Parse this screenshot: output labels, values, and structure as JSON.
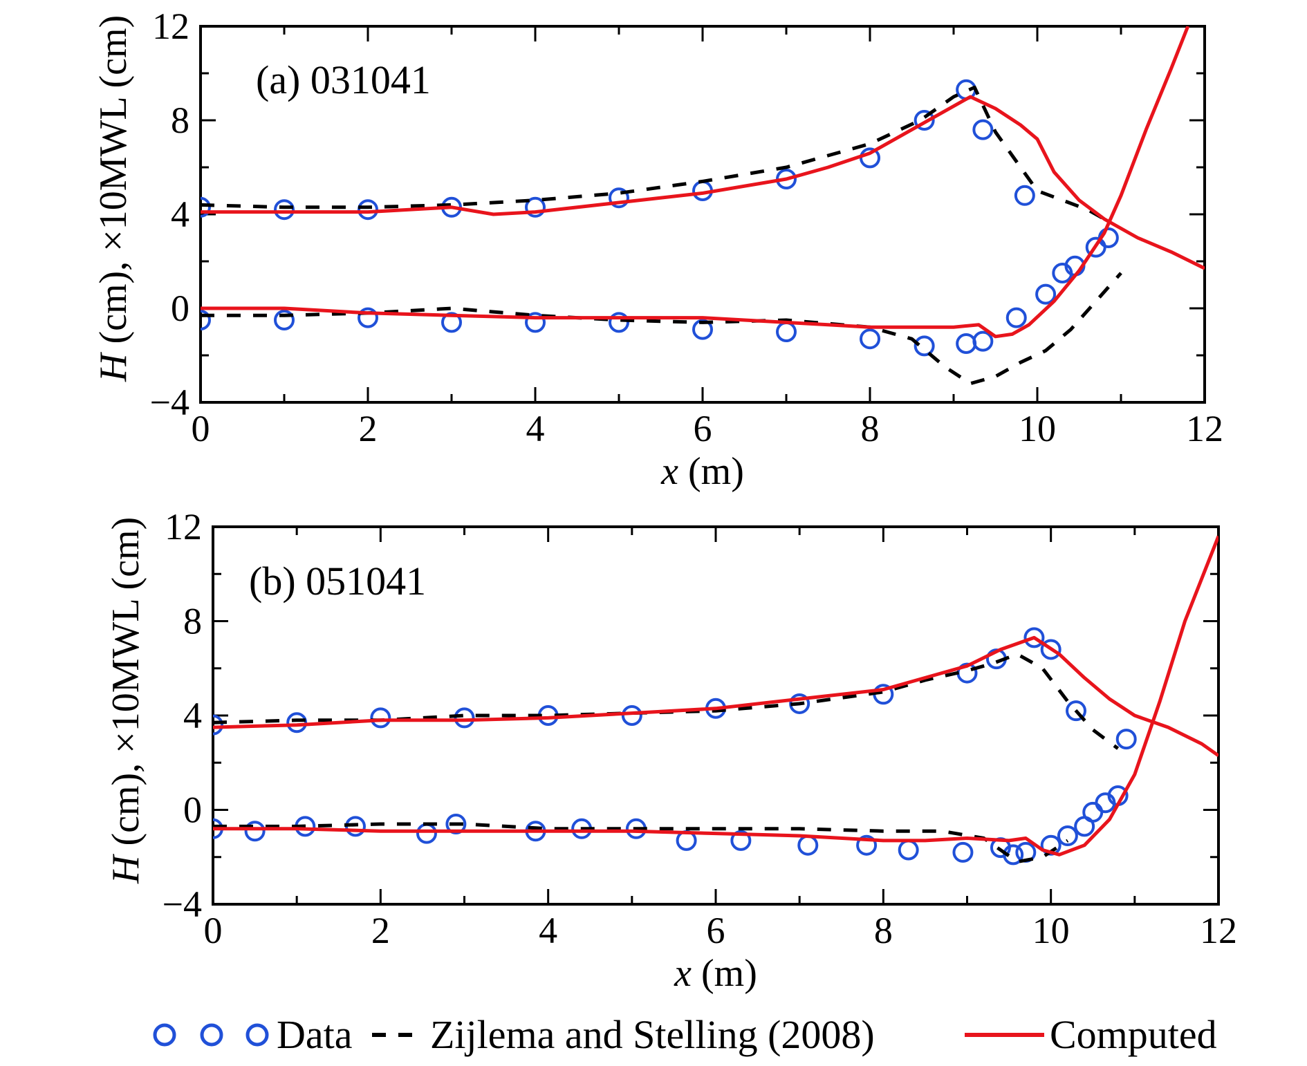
{
  "chart_data": [
    {
      "type": "line",
      "panel_title": "(a) 031041",
      "xlabel_var": "x",
      "xlabel_unit": "(m)",
      "ylabel_var": "H",
      "ylabel_rest": "(cm), ×10MWL (cm)",
      "xlim": [
        0,
        12
      ],
      "ylim": [
        -4,
        12
      ],
      "xticks": [
        0,
        2,
        4,
        6,
        8,
        10,
        12
      ],
      "yticks": [
        -4,
        0,
        4,
        8,
        12
      ],
      "ytick_labels": [
        "−4",
        "0",
        "4",
        "8",
        "12"
      ],
      "series": [
        {
          "name": "Data",
          "style": "circle",
          "color": "#2050d8",
          "groups": [
            {
              "x": [
                0,
                1,
                2,
                3,
                4,
                5,
                6,
                7,
                8,
                8.65,
                9.15,
                9.35,
                9.85
              ],
              "y": [
                4.3,
                4.2,
                4.2,
                4.3,
                4.3,
                4.7,
                5.0,
                5.5,
                6.4,
                8.0,
                9.3,
                7.6,
                4.8
              ]
            },
            {
              "x": [
                0,
                1,
                2,
                3,
                4,
                5,
                6,
                7,
                8,
                8.65,
                9.15,
                9.35,
                9.75,
                10.1,
                10.3,
                10.45,
                10.7,
                10.85
              ],
              "y": [
                -0.5,
                -0.5,
                -0.4,
                -0.6,
                -0.6,
                -0.6,
                -0.9,
                -1.0,
                -1.3,
                -1.6,
                -1.5,
                -1.4,
                -0.4,
                0.6,
                1.5,
                1.8,
                2.6,
                3.0
              ]
            }
          ]
        },
        {
          "name": "Zijlema and Stelling (2008)",
          "style": "dashed",
          "color": "#000000",
          "groups": [
            {
              "x": [
                0,
                1,
                2,
                3,
                4,
                5,
                6,
                7,
                8,
                8.6,
                9.0,
                9.25,
                9.5,
                9.8,
                10.0,
                10.3,
                10.6,
                10.8
              ],
              "y": [
                4.4,
                4.3,
                4.3,
                4.4,
                4.6,
                4.9,
                5.4,
                6.0,
                7.0,
                8.0,
                9.0,
                9.4,
                7.5,
                6.0,
                5.0,
                4.6,
                4.2,
                3.8
              ]
            },
            {
              "x": [
                0,
                1,
                2,
                3,
                4,
                5,
                6,
                7,
                8,
                8.5,
                8.9,
                9.2,
                9.5,
                9.8,
                10.1,
                10.4,
                10.7,
                11.0
              ],
              "y": [
                -0.3,
                -0.3,
                -0.2,
                0.0,
                -0.3,
                -0.5,
                -0.6,
                -0.5,
                -0.8,
                -1.3,
                -2.5,
                -3.2,
                -2.9,
                -2.3,
                -1.8,
                -0.9,
                0.3,
                1.5
              ]
            }
          ]
        },
        {
          "name": "Computed",
          "style": "solid",
          "color": "#e8141c",
          "groups": [
            {
              "x": [
                0,
                1,
                2,
                3,
                3.5,
                4,
                5,
                6,
                7,
                7.5,
                8,
                8.5,
                9.0,
                9.2,
                9.5,
                9.8,
                10.0,
                10.2,
                10.5,
                10.8,
                11.2,
                11.6,
                12.0
              ],
              "y": [
                4.1,
                4.1,
                4.1,
                4.3,
                4.0,
                4.1,
                4.5,
                4.9,
                5.5,
                6.0,
                6.6,
                7.6,
                8.6,
                9.0,
                8.5,
                7.8,
                7.2,
                5.8,
                4.6,
                3.8,
                3.0,
                2.4,
                1.7
              ]
            },
            {
              "x": [
                0,
                1,
                2,
                3,
                4,
                5,
                6,
                7,
                7.5,
                8,
                8.5,
                9.0,
                9.3,
                9.5,
                9.7,
                9.9,
                10.2,
                10.5,
                10.8,
                11.0,
                11.3,
                11.6,
                11.8
              ],
              "y": [
                0.0,
                0.0,
                -0.2,
                -0.3,
                -0.4,
                -0.4,
                -0.4,
                -0.6,
                -0.7,
                -0.8,
                -0.8,
                -0.8,
                -0.7,
                -1.2,
                -1.1,
                -0.7,
                0.3,
                1.6,
                3.2,
                4.8,
                7.6,
                10.2,
                12.0
              ]
            }
          ]
        }
      ]
    },
    {
      "type": "line",
      "panel_title": "(b) 051041",
      "xlabel_var": "x",
      "xlabel_unit": "(m)",
      "ylabel_var": "H",
      "ylabel_rest": "(cm), ×10MWL (cm)",
      "xlim": [
        0,
        12
      ],
      "ylim": [
        -4,
        12
      ],
      "xticks": [
        0,
        2,
        4,
        6,
        8,
        10,
        12
      ],
      "yticks": [
        -4,
        0,
        4,
        8,
        12
      ],
      "ytick_labels": [
        "−4",
        "0",
        "4",
        "8",
        "12"
      ],
      "series": [
        {
          "name": "Data",
          "style": "circle",
          "color": "#2050d8",
          "groups": [
            {
              "x": [
                0,
                1,
                2,
                3,
                4,
                5,
                6,
                7,
                8,
                9,
                9.35,
                9.8,
                10.0,
                10.3,
                10.9
              ],
              "y": [
                3.6,
                3.7,
                3.9,
                3.9,
                4.0,
                4.0,
                4.3,
                4.5,
                4.9,
                5.8,
                6.4,
                7.3,
                6.8,
                4.2,
                3.0
              ]
            },
            {
              "x": [
                0,
                0.5,
                1.1,
                1.7,
                2.55,
                2.9,
                3.85,
                4.4,
                5.05,
                5.65,
                6.3,
                7.1,
                7.8,
                8.3,
                8.95,
                9.4,
                9.55,
                9.7,
                10.0,
                10.2,
                10.4,
                10.5,
                10.65,
                10.8
              ],
              "y": [
                -0.8,
                -0.9,
                -0.7,
                -0.7,
                -1.0,
                -0.6,
                -0.9,
                -0.8,
                -0.8,
                -1.3,
                -1.3,
                -1.5,
                -1.5,
                -1.7,
                -1.8,
                -1.6,
                -1.9,
                -1.8,
                -1.5,
                -1.1,
                -0.7,
                -0.1,
                0.3,
                0.6
              ]
            }
          ]
        },
        {
          "name": "Zijlema and Stelling (2008)",
          "style": "dashed",
          "color": "#000000",
          "groups": [
            {
              "x": [
                0,
                1,
                2,
                3,
                4,
                5,
                6,
                7,
                8,
                8.5,
                9.0,
                9.3,
                9.6,
                9.9,
                10.2,
                10.5,
                10.8
              ],
              "y": [
                3.7,
                3.8,
                3.8,
                4.0,
                4.0,
                4.1,
                4.2,
                4.5,
                5.0,
                5.5,
                5.9,
                6.2,
                6.6,
                6.0,
                4.6,
                3.4,
                2.6
              ]
            },
            {
              "x": [
                0,
                1,
                2,
                3,
                4,
                5,
                6,
                7,
                8,
                8.7,
                9.2,
                9.6,
                9.9,
                10.2
              ],
              "y": [
                -0.7,
                -0.7,
                -0.6,
                -0.6,
                -0.8,
                -0.8,
                -0.8,
                -0.8,
                -0.9,
                -0.9,
                -1.2,
                -2.2,
                -2.0,
                -1.3
              ]
            }
          ]
        },
        {
          "name": "Computed",
          "style": "solid",
          "color": "#e8141c",
          "groups": [
            {
              "x": [
                0,
                1,
                1.5,
                2,
                3,
                4,
                5,
                6,
                7,
                8,
                8.5,
                9.0,
                9.4,
                9.8,
                10.1,
                10.4,
                10.7,
                11.0,
                11.4,
                11.8,
                12.0
              ],
              "y": [
                3.5,
                3.6,
                3.7,
                3.8,
                3.8,
                3.9,
                4.1,
                4.3,
                4.7,
                5.1,
                5.6,
                6.1,
                6.8,
                7.3,
                6.6,
                5.6,
                4.7,
                4.0,
                3.5,
                2.8,
                2.3
              ]
            },
            {
              "x": [
                0,
                1,
                2,
                3,
                4,
                5,
                6,
                7,
                8,
                8.5,
                9.0,
                9.5,
                9.7,
                9.9,
                10.1,
                10.4,
                10.7,
                11.0,
                11.3,
                11.6,
                12.0
              ],
              "y": [
                -0.8,
                -0.8,
                -0.9,
                -0.9,
                -0.9,
                -0.9,
                -1.0,
                -1.1,
                -1.3,
                -1.3,
                -1.2,
                -1.3,
                -1.2,
                -1.7,
                -1.9,
                -1.5,
                -0.4,
                1.5,
                4.6,
                8.0,
                11.6
              ]
            }
          ]
        }
      ]
    }
  ],
  "legend": [
    {
      "label": "Data",
      "style": "circle",
      "color": "#2050d8"
    },
    {
      "label": "Zijlema and Stelling (2008)",
      "style": "dashed",
      "color": "#000000"
    },
    {
      "label": "Computed",
      "style": "solid",
      "color": "#e8141c"
    }
  ]
}
